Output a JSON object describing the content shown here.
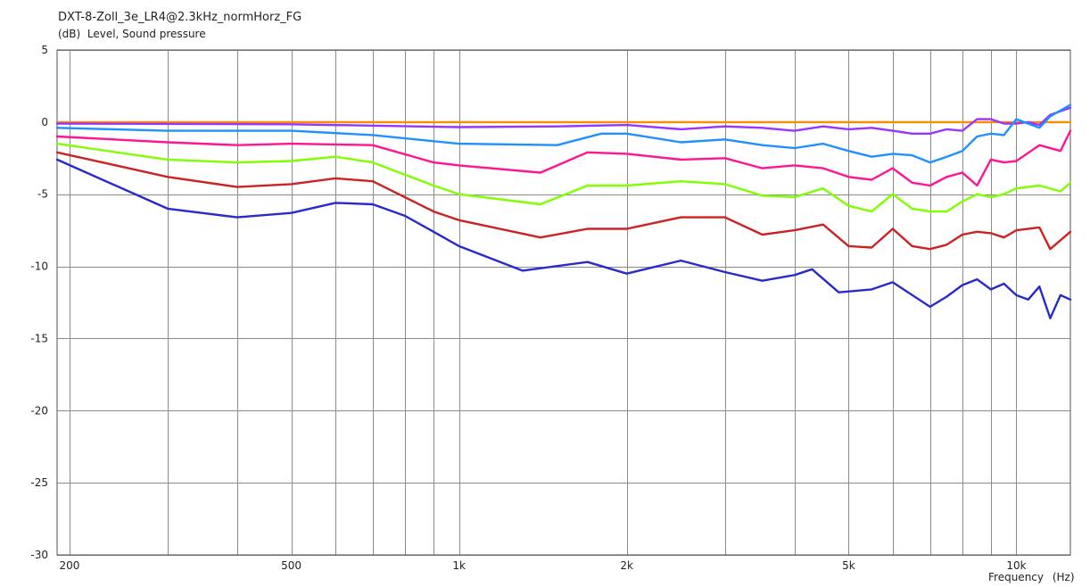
{
  "title": "DXT-8-Zoll_3e_LR4@2.3kHz_normHorz_FG",
  "ylabel_unit": "(dB)",
  "ylabel": "Level, Sound pressure",
  "xlabel": "Frequency",
  "xlabel_unit": "(Hz)",
  "chart_data": {
    "type": "line",
    "title": "DXT-8-Zoll_3e_LR4@2.3kHz_normHorz_FG",
    "xlabel": "Frequency (Hz)",
    "ylabel": "(dB) Level, Sound pressure",
    "xscale": "log",
    "xlim": [
      190,
      12500
    ],
    "ylim": [
      -30,
      5
    ],
    "yticks": [
      5,
      0,
      -5,
      -10,
      -15,
      -20,
      -25,
      -30
    ],
    "xticks": [
      {
        "value": 200,
        "label": "200"
      },
      {
        "value": 500,
        "label": "500"
      },
      {
        "value": 1000,
        "label": "1k"
      },
      {
        "value": 2000,
        "label": "2k"
      },
      {
        "value": 5000,
        "label": "5k"
      },
      {
        "value": 10000,
        "label": "10k"
      }
    ],
    "grid": true,
    "legend": "none",
    "series": [
      {
        "color": "#ff8c00",
        "points": [
          [
            190,
            0
          ],
          [
            12500,
            0
          ]
        ]
      },
      {
        "color": "#9933ff",
        "points": [
          [
            190,
            -0.1
          ],
          [
            500,
            -0.15
          ],
          [
            1000,
            -0.35
          ],
          [
            1500,
            -0.3
          ],
          [
            2000,
            -0.2
          ],
          [
            2500,
            -0.5
          ],
          [
            3000,
            -0.3
          ],
          [
            3500,
            -0.4
          ],
          [
            4000,
            -0.6
          ],
          [
            4500,
            -0.3
          ],
          [
            5000,
            -0.5
          ],
          [
            5500,
            -0.4
          ],
          [
            6000,
            -0.6
          ],
          [
            6500,
            -0.8
          ],
          [
            7000,
            -0.8
          ],
          [
            7500,
            -0.5
          ],
          [
            8000,
            -0.6
          ],
          [
            8500,
            0.2
          ],
          [
            9000,
            0.2
          ],
          [
            9500,
            -0.1
          ],
          [
            10000,
            -0.1
          ],
          [
            10500,
            0
          ],
          [
            11000,
            -0.2
          ],
          [
            11500,
            0.5
          ],
          [
            12500,
            1.0
          ]
        ]
      },
      {
        "color": "#1e90ff",
        "points": [
          [
            190,
            -0.4
          ],
          [
            300,
            -0.6
          ],
          [
            500,
            -0.6
          ],
          [
            700,
            -0.9
          ],
          [
            1000,
            -1.5
          ],
          [
            1500,
            -1.6
          ],
          [
            1800,
            -0.8
          ],
          [
            2000,
            -0.8
          ],
          [
            2500,
            -1.4
          ],
          [
            3000,
            -1.2
          ],
          [
            3500,
            -1.6
          ],
          [
            4000,
            -1.8
          ],
          [
            4500,
            -1.5
          ],
          [
            5000,
            -2.0
          ],
          [
            5500,
            -2.4
          ],
          [
            6000,
            -2.2
          ],
          [
            6500,
            -2.3
          ],
          [
            7000,
            -2.8
          ],
          [
            7500,
            -2.4
          ],
          [
            8000,
            -2.0
          ],
          [
            8500,
            -1.0
          ],
          [
            9000,
            -0.8
          ],
          [
            9500,
            -0.9
          ],
          [
            10000,
            0.2
          ],
          [
            11000,
            -0.4
          ],
          [
            11500,
            0.4
          ],
          [
            12500,
            1.2
          ]
        ]
      },
      {
        "color": "#ff1493",
        "points": [
          [
            190,
            -1.0
          ],
          [
            300,
            -1.4
          ],
          [
            400,
            -1.6
          ],
          [
            500,
            -1.5
          ],
          [
            700,
            -1.6
          ],
          [
            900,
            -2.8
          ],
          [
            1000,
            -3.0
          ],
          [
            1400,
            -3.5
          ],
          [
            1700,
            -2.1
          ],
          [
            2000,
            -2.2
          ],
          [
            2500,
            -2.6
          ],
          [
            3000,
            -2.5
          ],
          [
            3500,
            -3.2
          ],
          [
            4000,
            -3.0
          ],
          [
            4500,
            -3.2
          ],
          [
            5000,
            -3.8
          ],
          [
            5500,
            -4.0
          ],
          [
            6000,
            -3.2
          ],
          [
            6500,
            -4.2
          ],
          [
            7000,
            -4.4
          ],
          [
            7500,
            -3.8
          ],
          [
            8000,
            -3.5
          ],
          [
            8500,
            -4.4
          ],
          [
            9000,
            -2.6
          ],
          [
            9500,
            -2.8
          ],
          [
            10000,
            -2.7
          ],
          [
            11000,
            -1.6
          ],
          [
            12000,
            -2.0
          ],
          [
            12500,
            -0.6
          ]
        ]
      },
      {
        "color": "#7fff00",
        "points": [
          [
            190,
            -1.5
          ],
          [
            300,
            -2.6
          ],
          [
            400,
            -2.8
          ],
          [
            500,
            -2.7
          ],
          [
            600,
            -2.4
          ],
          [
            700,
            -2.8
          ],
          [
            900,
            -4.4
          ],
          [
            1000,
            -5.0
          ],
          [
            1400,
            -5.7
          ],
          [
            1700,
            -4.4
          ],
          [
            2000,
            -4.4
          ],
          [
            2500,
            -4.1
          ],
          [
            3000,
            -4.3
          ],
          [
            3500,
            -5.1
          ],
          [
            4000,
            -5.2
          ],
          [
            4500,
            -4.6
          ],
          [
            5000,
            -5.8
          ],
          [
            5500,
            -6.2
          ],
          [
            6000,
            -5.0
          ],
          [
            6500,
            -6.0
          ],
          [
            7000,
            -6.2
          ],
          [
            7500,
            -6.2
          ],
          [
            8000,
            -5.5
          ],
          [
            8500,
            -5.0
          ],
          [
            9000,
            -5.2
          ],
          [
            9500,
            -5.0
          ],
          [
            10000,
            -4.6
          ],
          [
            11000,
            -4.4
          ],
          [
            12000,
            -4.8
          ],
          [
            12500,
            -4.2
          ]
        ]
      },
      {
        "color": "#cc2222",
        "points": [
          [
            190,
            -2.1
          ],
          [
            300,
            -3.8
          ],
          [
            400,
            -4.5
          ],
          [
            500,
            -4.3
          ],
          [
            600,
            -3.9
          ],
          [
            700,
            -4.1
          ],
          [
            900,
            -6.2
          ],
          [
            1000,
            -6.8
          ],
          [
            1400,
            -8.0
          ],
          [
            1700,
            -7.4
          ],
          [
            2000,
            -7.4
          ],
          [
            2500,
            -6.6
          ],
          [
            3000,
            -6.6
          ],
          [
            3500,
            -7.8
          ],
          [
            4000,
            -7.5
          ],
          [
            4500,
            -7.1
          ],
          [
            5000,
            -8.6
          ],
          [
            5500,
            -8.7
          ],
          [
            6000,
            -7.4
          ],
          [
            6500,
            -8.6
          ],
          [
            7000,
            -8.8
          ],
          [
            7500,
            -8.5
          ],
          [
            8000,
            -7.8
          ],
          [
            8500,
            -7.6
          ],
          [
            9000,
            -7.7
          ],
          [
            9500,
            -8.0
          ],
          [
            10000,
            -7.5
          ],
          [
            11000,
            -7.3
          ],
          [
            11500,
            -8.8
          ],
          [
            12500,
            -7.6
          ]
        ]
      },
      {
        "color": "#2a2acc",
        "points": [
          [
            190,
            -2.6
          ],
          [
            300,
            -6.0
          ],
          [
            400,
            -6.6
          ],
          [
            500,
            -6.3
          ],
          [
            600,
            -5.6
          ],
          [
            700,
            -5.7
          ],
          [
            800,
            -6.5
          ],
          [
            900,
            -7.6
          ],
          [
            1000,
            -8.6
          ],
          [
            1300,
            -10.3
          ],
          [
            1700,
            -9.7
          ],
          [
            2000,
            -10.5
          ],
          [
            2500,
            -9.6
          ],
          [
            3000,
            -10.4
          ],
          [
            3500,
            -11.0
          ],
          [
            4000,
            -10.6
          ],
          [
            4300,
            -10.2
          ],
          [
            4800,
            -11.8
          ],
          [
            5500,
            -11.6
          ],
          [
            6000,
            -11.1
          ],
          [
            7000,
            -12.8
          ],
          [
            7500,
            -12.1
          ],
          [
            8000,
            -11.3
          ],
          [
            8500,
            -10.9
          ],
          [
            9000,
            -11.6
          ],
          [
            9500,
            -11.2
          ],
          [
            10000,
            -12.0
          ],
          [
            10500,
            -12.3
          ],
          [
            11000,
            -11.4
          ],
          [
            11500,
            -13.6
          ],
          [
            12000,
            -12.0
          ],
          [
            12500,
            -12.3
          ]
        ]
      }
    ]
  }
}
